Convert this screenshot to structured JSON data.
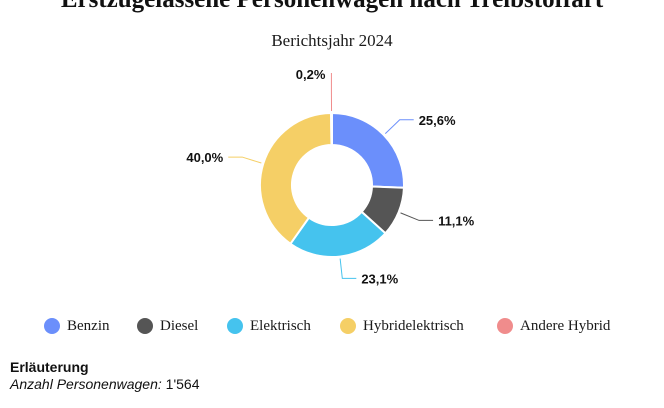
{
  "chart_data": {
    "type": "pie",
    "title": "Erstzugelassene Personenwagen nach Treibstoffart",
    "subtitle": "Berichtsjahr 2024",
    "categories": [
      "Benzin",
      "Diesel",
      "Elektrisch",
      "Hybridelektrisch",
      "Andere Hybrid"
    ],
    "values": [
      25.6,
      11.1,
      23.1,
      40.0,
      0.2
    ],
    "data_labels": [
      "25,6%",
      "11,1%",
      "23,1%",
      "40,0%",
      "0,2%"
    ],
    "colors": [
      "#6b8ffb",
      "#555555",
      "#45c3ee",
      "#f5cf66",
      "#f08c8c"
    ],
    "legend_position": "bottom"
  },
  "note": {
    "heading": "Erläuterung",
    "label": "Anzahl Personenwagen:",
    "value": "1'564"
  }
}
